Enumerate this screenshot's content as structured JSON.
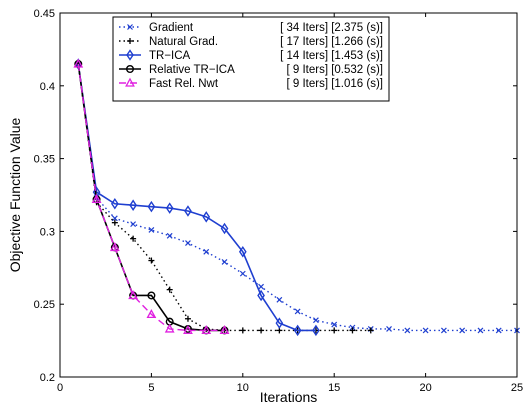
{
  "chart_data": {
    "type": "line",
    "xlabel": "Iterations",
    "ylabel": "Objective Function Value",
    "xlim": [
      0,
      25
    ],
    "ylim": [
      0.2,
      0.45
    ],
    "xticks": [
      0,
      5,
      10,
      15,
      20,
      25
    ],
    "yticks": [
      0.2,
      0.25,
      0.3,
      0.35,
      0.4,
      0.45
    ],
    "xtick_labels": [
      "0",
      "5",
      "10",
      "15",
      "20",
      "25"
    ],
    "ytick_labels": [
      "0.2",
      "0.25",
      "0.3",
      "0.35",
      "0.4",
      "0.45"
    ],
    "grid": false,
    "legend_position": "top-center",
    "series": [
      {
        "name": "Gradient",
        "stat": "[ 34 Iters] [2.375 (s)]",
        "color": "#1f3fd0",
        "dash": "1.5,3",
        "marker": "x",
        "x": [
          1,
          2,
          3,
          4,
          5,
          6,
          7,
          8,
          9,
          10,
          11,
          12,
          13,
          14,
          15,
          16,
          17,
          18,
          19,
          20,
          21,
          22,
          23,
          24,
          25
        ],
        "y": [
          0.415,
          0.323,
          0.309,
          0.305,
          0.301,
          0.297,
          0.292,
          0.286,
          0.279,
          0.271,
          0.262,
          0.253,
          0.245,
          0.239,
          0.236,
          0.234,
          0.233,
          0.233,
          0.232,
          0.232,
          0.232,
          0.232,
          0.232,
          0.232,
          0.232
        ]
      },
      {
        "name": "Natural Grad.",
        "stat": "[ 17 Iters] [1.266 (s)]",
        "color": "#000000",
        "dash": "1.5,3",
        "marker": "+",
        "x": [
          1,
          2,
          3,
          4,
          5,
          6,
          7,
          8,
          9,
          10,
          11,
          12,
          13,
          14,
          15,
          16,
          17
        ],
        "y": [
          0.415,
          0.32,
          0.306,
          0.295,
          0.28,
          0.26,
          0.24,
          0.233,
          0.232,
          0.232,
          0.232,
          0.232,
          0.232,
          0.232,
          0.232,
          0.232,
          0.232
        ]
      },
      {
        "name": "TR−ICA",
        "stat": "[ 14 Iters] [1.453 (s)]",
        "color": "#1f3fd0",
        "dash": "",
        "marker": "diamond",
        "x": [
          1,
          2,
          3,
          4,
          5,
          6,
          7,
          8,
          9,
          10,
          11,
          12,
          13,
          14
        ],
        "y": [
          0.415,
          0.327,
          0.319,
          0.318,
          0.317,
          0.316,
          0.314,
          0.31,
          0.302,
          0.286,
          0.256,
          0.237,
          0.232,
          0.232
        ]
      },
      {
        "name": "Relative TR−ICA",
        "stat": "[ 9 Iters] [0.532 (s)]",
        "color": "#000000",
        "dash": "",
        "marker": "circle",
        "x": [
          1,
          2,
          3,
          4,
          5,
          6,
          7,
          8,
          9
        ],
        "y": [
          0.415,
          0.322,
          0.289,
          0.256,
          0.256,
          0.238,
          0.233,
          0.232,
          0.232
        ]
      },
      {
        "name": "Fast Rel. Nwt",
        "stat": "[ 9 Iters] [1.016 (s)]",
        "color": "#e020e0",
        "dash": "7,4",
        "marker": "triangle",
        "x": [
          1,
          2,
          3,
          4,
          5,
          6,
          7,
          8,
          9
        ],
        "y": [
          0.415,
          0.322,
          0.289,
          0.256,
          0.243,
          0.233,
          0.232,
          0.232,
          0.232
        ]
      }
    ]
  }
}
